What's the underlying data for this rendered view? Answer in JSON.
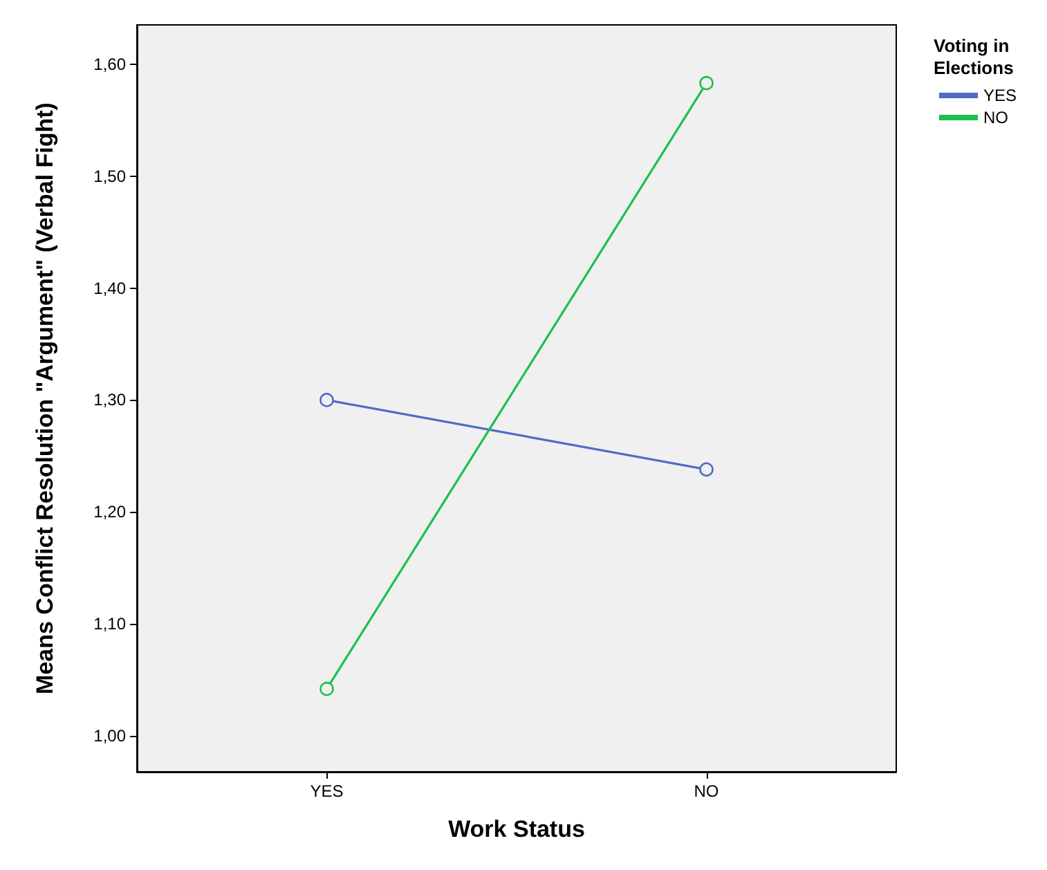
{
  "chart_data": {
    "type": "line",
    "xlabel": "Work Status",
    "ylabel": "Means Conflict Resolution \"Argument\" (Verbal Fight)",
    "legend_title": "Voting in Elections",
    "categories": [
      "YES",
      "NO"
    ],
    "series": [
      {
        "name": "YES",
        "color": "#4d6cc4",
        "values": [
          1.3,
          1.238
        ]
      },
      {
        "name": "NO",
        "color": "#1dbf4b",
        "values": [
          1.042,
          1.583
        ]
      }
    ],
    "ylim": [
      0.968,
      1.635
    ],
    "yticks": [
      {
        "value": 1.0,
        "label": "1,00"
      },
      {
        "value": 1.1,
        "label": "1,10"
      },
      {
        "value": 1.2,
        "label": "1,20"
      },
      {
        "value": 1.3,
        "label": "1,30"
      },
      {
        "value": 1.4,
        "label": "1,40"
      },
      {
        "value": 1.5,
        "label": "1,50"
      },
      {
        "value": 1.6,
        "label": "1,60"
      }
    ],
    "marker": "circle",
    "line_style": "solid",
    "grid": false,
    "legend": "top right"
  }
}
